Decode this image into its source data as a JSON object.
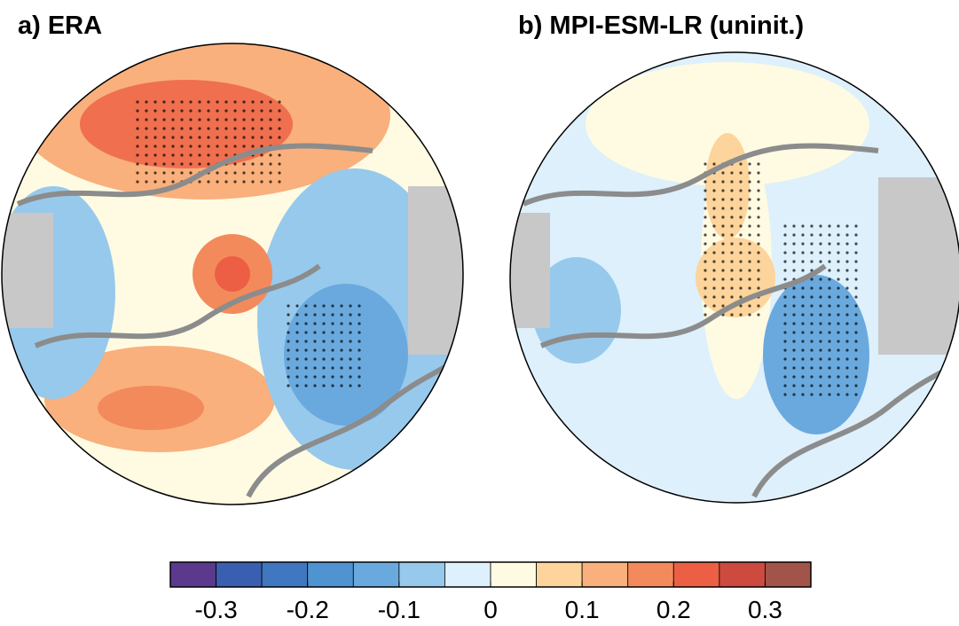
{
  "panels": [
    {
      "title": "a) ERA"
    },
    {
      "title": "b) MPI-ESM-LR (uninit.)"
    }
  ],
  "colorbar": {
    "bounds": [
      -0.35,
      -0.3,
      -0.25,
      -0.2,
      -0.15,
      -0.1,
      -0.05,
      0,
      0.05,
      0.1,
      0.15,
      0.2,
      0.25,
      0.3,
      0.35
    ],
    "colors": [
      "#5b3a8e",
      "#3b5fb0",
      "#3f78c0",
      "#4f93d0",
      "#6aa9de",
      "#97c9ec",
      "#ddf0fb",
      "#fffbe3",
      "#fdd49b",
      "#f9b07c",
      "#f38a5b",
      "#ec5f44",
      "#cd4a3e",
      "#a3544a"
    ],
    "ticks": [
      -0.3,
      -0.2,
      -0.1,
      0,
      0.1,
      0.2,
      0.3
    ]
  }
}
